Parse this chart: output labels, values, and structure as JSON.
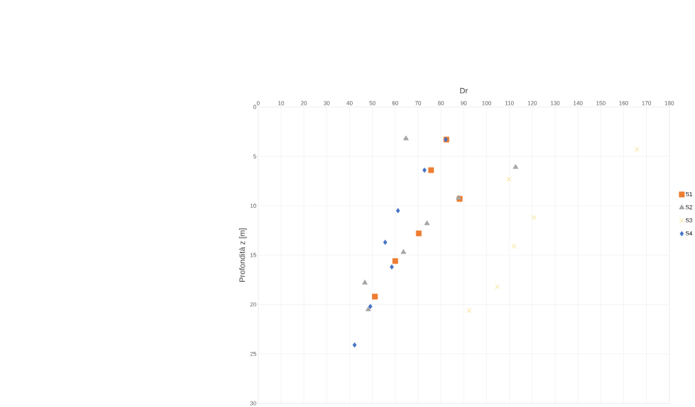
{
  "chart_data": {
    "type": "scatter",
    "xlabel": "Dr",
    "ylabel": "Profondità z [m]",
    "xlim": [
      0,
      180
    ],
    "xticks": [
      0,
      10,
      20,
      30,
      40,
      50,
      60,
      70,
      80,
      90,
      100,
      110,
      120,
      130,
      140,
      150,
      160,
      170,
      180
    ],
    "ylim": [
      30,
      0
    ],
    "yticks": [
      0,
      5,
      10,
      15,
      20,
      25,
      30
    ],
    "grid": true,
    "legend": "right",
    "series": [
      {
        "name": "S1",
        "color": "#ed7d31",
        "marker": "square",
        "x": [
          82.4,
          75.7,
          88.2,
          70.3,
          60,
          51.1
        ],
        "values": [
          3.3,
          6.4,
          9.3,
          12.8,
          15.6,
          19.2
        ]
      },
      {
        "name": "S2",
        "color": "#a5a5a5",
        "marker": "triangle",
        "x": [
          64.7,
          112.7,
          87.7,
          73.9,
          63.6,
          46.7,
          48.2
        ],
        "values": [
          3.2,
          6.1,
          9.2,
          11.8,
          14.7,
          17.8,
          20.5
        ]
      },
      {
        "name": "S3",
        "color": "#f2d35a",
        "marker": "cross",
        "x": [
          165.8,
          109.8,
          120.8,
          112,
          104.7,
          92.4
        ],
        "values": [
          4.3,
          7.3,
          11.2,
          14.1,
          18.2,
          20.6
        ]
      },
      {
        "name": "S4",
        "color": "#4472c4",
        "marker": "diamond",
        "x": [
          82.1,
          72.8,
          61.2,
          55.6,
          58.5,
          49.1,
          42.2
        ],
        "values": [
          3.3,
          6.4,
          10.5,
          13.7,
          16.2,
          20.2,
          24.1
        ]
      }
    ]
  }
}
